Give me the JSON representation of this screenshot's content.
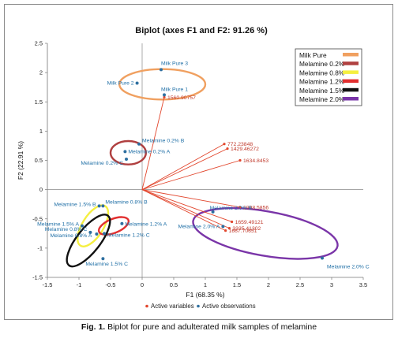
{
  "caption": {
    "prefix": "Fig. 1.",
    "text": " Biplot for pure and adulterated milk samples of melamine"
  },
  "chart_data": {
    "type": "scatter",
    "title": "Biplot (axes F1 and F2: 91.26 %)",
    "xlabel": "F1 (68.35 %)",
    "ylabel": "F2 (22.91 %)",
    "xlim": [
      -1.5,
      3.5
    ],
    "ylim": [
      -1.5,
      2.5
    ],
    "xticks": [
      -1.5,
      -1,
      -0.5,
      0,
      0.5,
      1,
      1.5,
      2,
      2.5,
      3,
      3.5
    ],
    "yticks": [
      -1.5,
      -1,
      -0.5,
      0,
      0.5,
      1,
      1.5,
      2,
      2.5
    ],
    "grid": false,
    "observations": [
      {
        "label": "Milk Pure 3",
        "x": 0.3,
        "y": 2.05
      },
      {
        "label": "Milk Pure 2",
        "x": -0.08,
        "y": 1.82
      },
      {
        "label": "Milk Pure 1",
        "x": 0.35,
        "y": 1.62
      },
      {
        "label": "Melamine 0.2% B",
        "x": -0.05,
        "y": 0.78
      },
      {
        "label": "Melamine 0.2% A",
        "x": -0.27,
        "y": 0.65
      },
      {
        "label": "Melamine 0.2% C",
        "x": -0.25,
        "y": 0.52
      },
      {
        "label": "Melamine 0.8% B",
        "x": -0.62,
        "y": -0.28
      },
      {
        "label": "Melamine 1.5% B",
        "x": -0.68,
        "y": -0.28
      },
      {
        "label": "Melamine 1.2% A",
        "x": -0.32,
        "y": -0.58
      },
      {
        "label": "Melamine 1.5% A",
        "x": -0.95,
        "y": -0.62
      },
      {
        "label": "Melamine 0.8% C",
        "x": -0.82,
        "y": -0.73
      },
      {
        "label": "Melamine 1.2% C",
        "x": -0.6,
        "y": -0.75
      },
      {
        "label": "Melamine 0.8% A",
        "x": -0.72,
        "y": -0.76
      },
      {
        "label": "Melamine 1.5% C",
        "x": -0.62,
        "y": -1.18
      },
      {
        "label": "Melamine 2.0% B",
        "x": 1.12,
        "y": -0.38
      },
      {
        "label": "Melamine 2.0% A",
        "x": 1.28,
        "y": -0.63
      },
      {
        "label": "Melamine 2.0% C",
        "x": 2.85,
        "y": -1.17
      }
    ],
    "variables": [
      {
        "label": "1560.90757",
        "x": 0.35,
        "y": 1.58
      },
      {
        "label": "772.23848",
        "x": 1.3,
        "y": 0.78
      },
      {
        "label": "1429.46272",
        "x": 1.35,
        "y": 0.7
      },
      {
        "label": "1634.8453",
        "x": 1.55,
        "y": 0.5
      },
      {
        "label": "1998.5856",
        "x": 1.55,
        "y": -0.3
      },
      {
        "label": "1659.49121",
        "x": 1.42,
        "y": -0.55
      },
      {
        "label": "3335.41302",
        "x": 1.38,
        "y": -0.66
      },
      {
        "label": "1667.70651",
        "x": 1.32,
        "y": -0.7
      }
    ],
    "groups": [
      {
        "name": "Milk Pure",
        "color": "#f0a060",
        "center": [
          0.32,
          1.8
        ],
        "radius": [
          0.68,
          0.26
        ],
        "angle": 0
      },
      {
        "name": "Melamine 0.2%",
        "color": "#b04040",
        "center": [
          -0.22,
          0.63
        ],
        "radius": [
          0.28,
          0.2
        ],
        "angle": 0
      },
      {
        "name": "Melamine 0.8%",
        "color": "#f5ef40",
        "center": [
          -0.78,
          -0.62
        ],
        "radius": [
          0.37,
          0.18
        ],
        "angle": 58
      },
      {
        "name": "Melamine 1.2%",
        "color": "#e23030",
        "center": [
          -0.45,
          -0.62
        ],
        "radius": [
          0.25,
          0.12
        ],
        "angle": 22
      },
      {
        "name": "Melamine 1.5%",
        "color": "#111111",
        "center": [
          -0.85,
          -0.87
        ],
        "radius": [
          0.5,
          0.2
        ],
        "angle": 52
      },
      {
        "name": "Melamine 2.0%",
        "color": "#7a35a8",
        "center": [
          1.95,
          -0.75
        ],
        "radius": [
          1.16,
          0.38
        ],
        "angle": -10
      }
    ],
    "legend": {
      "placement": "top-right"
    },
    "bottom_legend": {
      "placement": "bottom",
      "items": [
        {
          "label": "Active variables",
          "color": "#e2462d"
        },
        {
          "label": "Active observations",
          "color": "#2e6fa0"
        }
      ]
    },
    "colors": {
      "observation": "#2e6fa0",
      "variable": "#e2462d",
      "axis": "#666666"
    }
  }
}
